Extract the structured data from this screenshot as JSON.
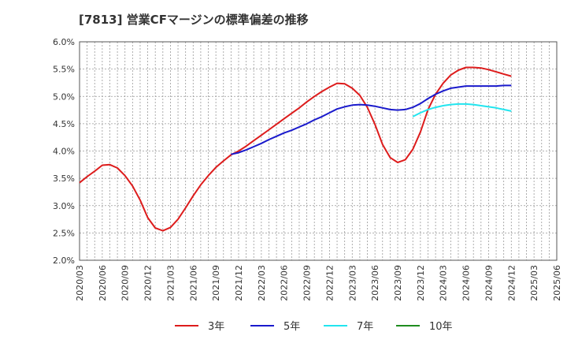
{
  "chart_data": {
    "type": "line",
    "title": "[7813]  営業CFマージンの標準偏差の推移",
    "xlabel": "",
    "ylabel": "",
    "ylim": [
      2.0,
      6.0
    ],
    "y_ticks": [
      "2.0%",
      "2.5%",
      "3.0%",
      "3.5%",
      "4.0%",
      "4.5%",
      "5.0%",
      "5.5%",
      "6.0%"
    ],
    "x_ticks": [
      "2020/03",
      "2020/06",
      "2020/09",
      "2020/12",
      "2021/03",
      "2021/06",
      "2021/09",
      "2021/12",
      "2022/03",
      "2022/06",
      "2022/09",
      "2022/12",
      "2023/03",
      "2023/06",
      "2023/09",
      "2023/12",
      "2024/03",
      "2024/06",
      "2024/09",
      "2024/12",
      "2025/03",
      "2025/06"
    ],
    "grid": true,
    "legend_position": "bottom",
    "series": [
      {
        "name": "3年",
        "color": "#dd1c1c",
        "x": [
          "2020/03",
          "2020/04",
          "2020/05",
          "2020/06",
          "2020/07",
          "2020/08",
          "2020/09",
          "2020/10",
          "2020/11",
          "2020/12",
          "2021/01",
          "2021/02",
          "2021/03",
          "2021/04",
          "2021/05",
          "2021/06",
          "2021/07",
          "2021/08",
          "2021/09",
          "2021/10",
          "2021/11",
          "2021/12",
          "2022/01",
          "2022/02",
          "2022/03",
          "2022/04",
          "2022/05",
          "2022/06",
          "2022/07",
          "2022/08",
          "2022/09",
          "2022/10",
          "2022/11",
          "2022/12",
          "2023/01",
          "2023/02",
          "2023/03",
          "2023/04",
          "2023/05",
          "2023/06",
          "2023/07",
          "2023/08",
          "2023/09",
          "2023/10",
          "2023/11",
          "2023/12",
          "2024/01",
          "2024/02",
          "2024/03",
          "2024/04",
          "2024/05",
          "2024/06",
          "2024/07",
          "2024/08",
          "2024/09",
          "2024/10",
          "2024/11",
          "2024/12"
        ],
        "values": [
          3.42,
          3.53,
          3.63,
          3.74,
          3.75,
          3.69,
          3.55,
          3.36,
          3.1,
          2.78,
          2.59,
          2.54,
          2.6,
          2.75,
          2.96,
          3.18,
          3.38,
          3.55,
          3.7,
          3.82,
          3.93,
          4.0,
          4.09,
          4.19,
          4.29,
          4.39,
          4.49,
          4.59,
          4.69,
          4.79,
          4.9,
          5.0,
          5.09,
          5.17,
          5.24,
          5.23,
          5.15,
          5.02,
          4.8,
          4.49,
          4.12,
          3.88,
          3.79,
          3.84,
          4.03,
          4.35,
          4.76,
          5.04,
          5.24,
          5.39,
          5.48,
          5.53,
          5.53,
          5.52,
          5.49,
          5.45,
          5.41,
          5.37
        ]
      },
      {
        "name": "5年",
        "color": "#1a1acc",
        "x": [
          "2021/11",
          "2021/12",
          "2022/01",
          "2022/02",
          "2022/03",
          "2022/04",
          "2022/05",
          "2022/06",
          "2022/07",
          "2022/08",
          "2022/09",
          "2022/10",
          "2022/11",
          "2022/12",
          "2023/01",
          "2023/02",
          "2023/03",
          "2023/04",
          "2023/05",
          "2023/06",
          "2023/07",
          "2023/08",
          "2023/09",
          "2023/10",
          "2023/11",
          "2023/12",
          "2024/01",
          "2024/02",
          "2024/03",
          "2024/04",
          "2024/05",
          "2024/06",
          "2024/07",
          "2024/08",
          "2024/09",
          "2024/10",
          "2024/11",
          "2024/12"
        ],
        "values": [
          3.94,
          3.97,
          4.02,
          4.08,
          4.14,
          4.21,
          4.27,
          4.33,
          4.38,
          4.44,
          4.5,
          4.57,
          4.63,
          4.7,
          4.77,
          4.81,
          4.84,
          4.85,
          4.84,
          4.82,
          4.79,
          4.76,
          4.75,
          4.76,
          4.8,
          4.87,
          4.96,
          5.04,
          5.1,
          5.15,
          5.17,
          5.19,
          5.19,
          5.19,
          5.19,
          5.19,
          5.2,
          5.2
        ]
      },
      {
        "name": "7年",
        "color": "#22e5ef",
        "x": [
          "2023/11",
          "2023/12",
          "2024/01",
          "2024/02",
          "2024/03",
          "2024/04",
          "2024/05",
          "2024/06",
          "2024/07",
          "2024/08",
          "2024/09",
          "2024/10",
          "2024/11",
          "2024/12"
        ],
        "values": [
          4.63,
          4.7,
          4.76,
          4.8,
          4.83,
          4.85,
          4.86,
          4.86,
          4.85,
          4.83,
          4.81,
          4.79,
          4.76,
          4.73
        ]
      },
      {
        "name": "10年",
        "color": "#1e8c1e",
        "x": [],
        "values": []
      }
    ]
  }
}
